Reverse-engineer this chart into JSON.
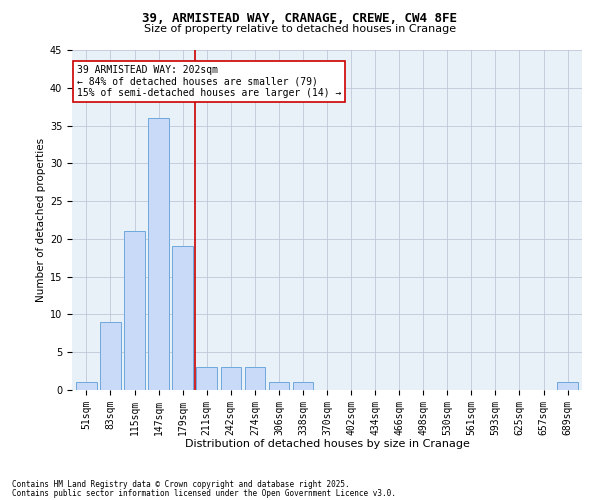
{
  "title": "39, ARMISTEAD WAY, CRANAGE, CREWE, CW4 8FE",
  "subtitle": "Size of property relative to detached houses in Cranage",
  "xlabel": "Distribution of detached houses by size in Cranage",
  "ylabel": "Number of detached properties",
  "categories": [
    "51sqm",
    "83sqm",
    "115sqm",
    "147sqm",
    "179sqm",
    "211sqm",
    "242sqm",
    "274sqm",
    "306sqm",
    "338sqm",
    "370sqm",
    "402sqm",
    "434sqm",
    "466sqm",
    "498sqm",
    "530sqm",
    "561sqm",
    "593sqm",
    "625sqm",
    "657sqm",
    "689sqm"
  ],
  "values": [
    1,
    9,
    21,
    36,
    19,
    3,
    3,
    3,
    1,
    1,
    0,
    0,
    0,
    0,
    0,
    0,
    0,
    0,
    0,
    0,
    1
  ],
  "bar_color": "#c9daf8",
  "bar_edge_color": "#6fa8dc",
  "grid_color": "#c0c8d8",
  "bg_color": "#e8f0f8",
  "vline_x": 4.5,
  "vline_color": "#cc0000",
  "annotation_text": "39 ARMISTEAD WAY: 202sqm\n← 84% of detached houses are smaller (79)\n15% of semi-detached houses are larger (14) →",
  "annotation_box_color": "#cc0000",
  "footnote1": "Contains HM Land Registry data © Crown copyright and database right 2025.",
  "footnote2": "Contains public sector information licensed under the Open Government Licence v3.0.",
  "ylim": [
    0,
    45
  ],
  "yticks": [
    0,
    5,
    10,
    15,
    20,
    25,
    30,
    35,
    40,
    45
  ],
  "title_fontsize": 9,
  "subtitle_fontsize": 8,
  "xlabel_fontsize": 8,
  "ylabel_fontsize": 7.5,
  "tick_fontsize": 7,
  "annotation_fontsize": 7,
  "footnote_fontsize": 5.5
}
